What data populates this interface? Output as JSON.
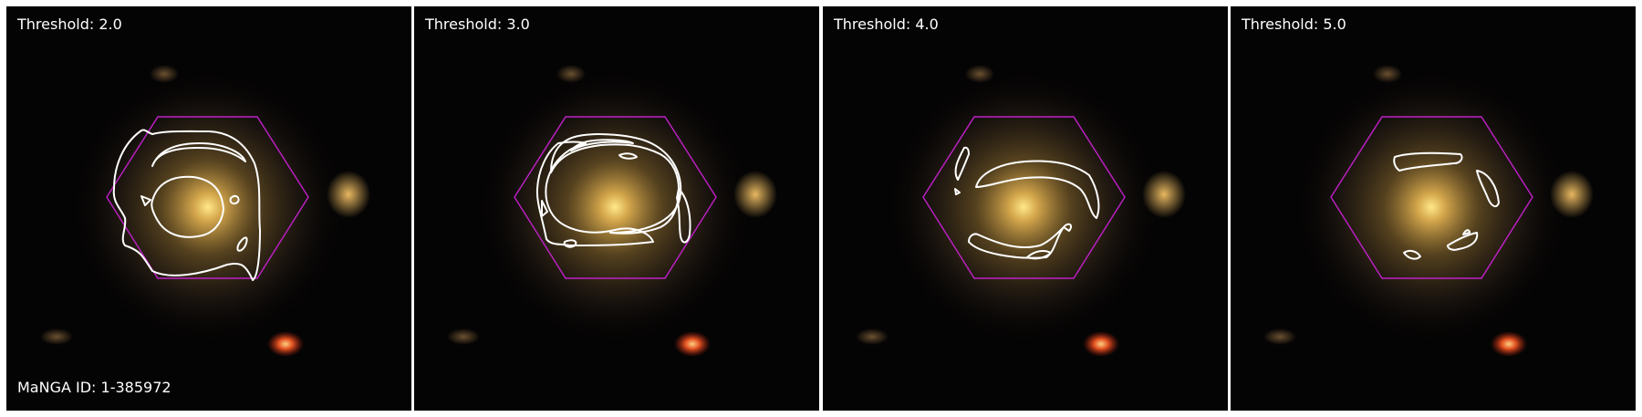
{
  "figure": {
    "manga_id_label": "MaNGA ID: 1-385972",
    "panels": [
      {
        "label": "Threshold: 2.0",
        "threshold": 2.0
      },
      {
        "label": "Threshold: 3.0",
        "threshold": 3.0
      },
      {
        "label": "Threshold: 4.0",
        "threshold": 4.0
      },
      {
        "label": "Threshold: 5.0",
        "threshold": 5.0
      }
    ],
    "colors": {
      "hexagon": "#c020c8",
      "contour": "#ffffff",
      "galaxy_core": "#ffe88a",
      "galaxy_halo": "#c08a3a",
      "background": "#050404"
    }
  }
}
